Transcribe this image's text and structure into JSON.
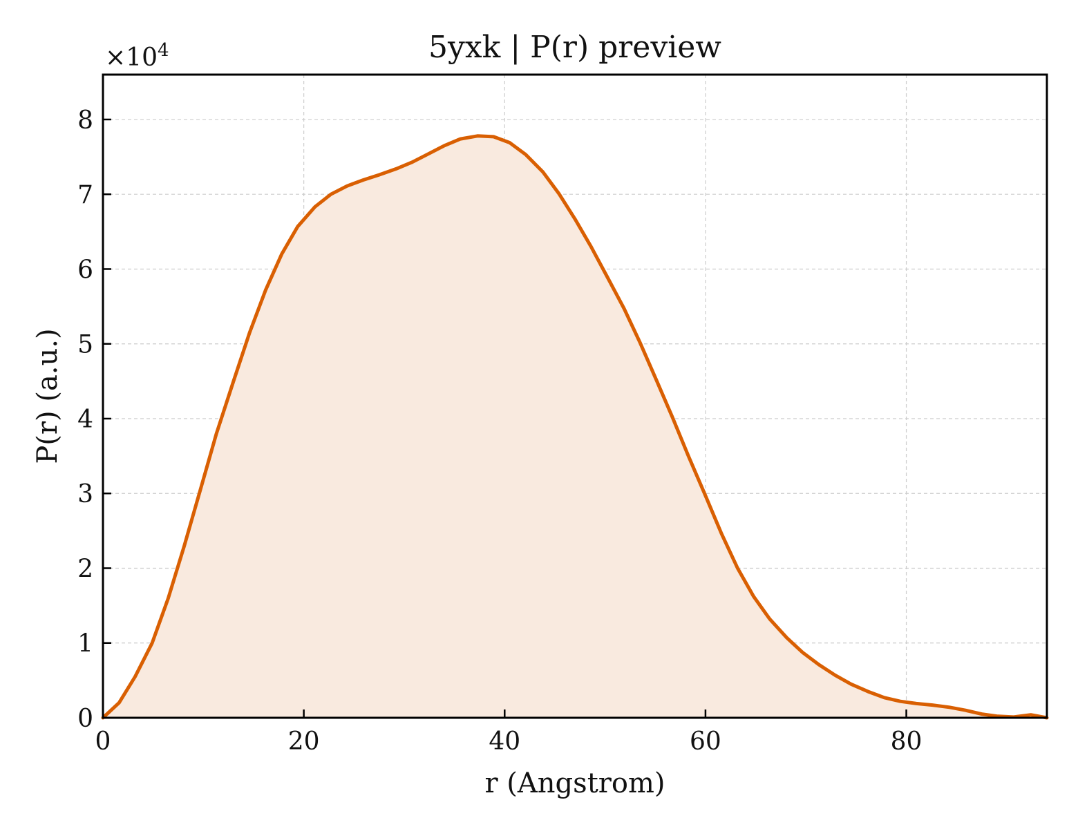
{
  "chart_data": {
    "type": "area",
    "title": "5yxk | P(r) preview",
    "xlabel": "r (Angstrom)",
    "ylabel": "P(r) (a.u.)",
    "y_multiplier": {
      "base": "×10",
      "exponent": "4"
    },
    "xlim": [
      0,
      94
    ],
    "ylim": [
      0,
      8.6
    ],
    "x_ticks": [
      0,
      20,
      40,
      60,
      80
    ],
    "y_ticks": [
      0,
      1,
      2,
      3,
      4,
      5,
      6,
      7,
      8
    ],
    "grid": true,
    "line_color": "#d95f02",
    "fill_color": "#f9eadf",
    "series": [
      {
        "x": [
          0,
          1.6,
          3.2,
          4.9,
          6.5,
          8.1,
          9.7,
          11.3,
          13.0,
          14.6,
          16.2,
          17.8,
          19.4,
          21.1,
          22.7,
          24.3,
          25.9,
          27.5,
          29.2,
          30.8,
          32.4,
          34.0,
          35.6,
          37.3,
          38.9,
          40.5,
          42.1,
          43.8,
          45.4,
          47.0,
          48.6,
          50.2,
          51.9,
          53.5,
          55.1,
          56.7,
          58.3,
          60.0,
          61.6,
          63.2,
          64.8,
          66.4,
          68.1,
          69.7,
          71.3,
          72.9,
          74.5,
          76.2,
          77.8,
          79.4,
          81.0,
          82.6,
          84.3,
          85.9,
          87.5,
          89.1,
          90.7,
          92.4,
          94.0
        ],
        "y": [
          0.0,
          0.2,
          0.55,
          1.0,
          1.6,
          2.3,
          3.05,
          3.8,
          4.5,
          5.15,
          5.72,
          6.2,
          6.57,
          6.83,
          7.0,
          7.11,
          7.19,
          7.26,
          7.34,
          7.43,
          7.54,
          7.65,
          7.74,
          7.78,
          7.77,
          7.69,
          7.53,
          7.3,
          7.01,
          6.67,
          6.3,
          5.9,
          5.47,
          5.01,
          4.52,
          4.02,
          3.5,
          2.97,
          2.46,
          2.0,
          1.62,
          1.32,
          1.07,
          0.87,
          0.71,
          0.57,
          0.45,
          0.35,
          0.27,
          0.22,
          0.19,
          0.17,
          0.14,
          0.1,
          0.05,
          0.02,
          0.01,
          0.04,
          0.0
        ]
      }
    ]
  }
}
